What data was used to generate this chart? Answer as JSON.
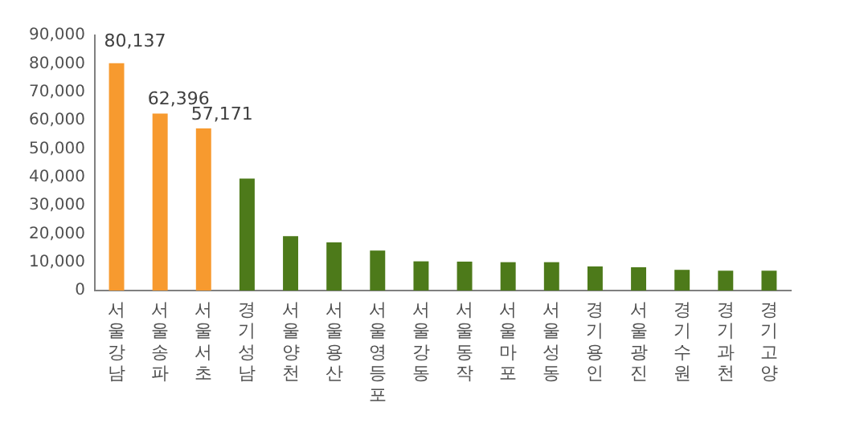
{
  "chart_data": {
    "type": "bar",
    "categories": [
      "서울강남",
      "서울송파",
      "서울서초",
      "경기성남",
      "서울양천",
      "서울용산",
      "서울영등포",
      "서울강동",
      "서울동작",
      "서울마포",
      "서울성동",
      "경기용인",
      "서울광진",
      "경기수원",
      "경기과천",
      "경기고양"
    ],
    "values": [
      80137,
      62396,
      57171,
      39500,
      19200,
      17000,
      14100,
      10300,
      10200,
      10000,
      10000,
      8500,
      8200,
      7300,
      7000,
      7000
    ],
    "colors": [
      "#f79a2f",
      "#f79a2f",
      "#f79a2f",
      "#4d7a1a",
      "#4d7a1a",
      "#4d7a1a",
      "#4d7a1a",
      "#4d7a1a",
      "#4d7a1a",
      "#4d7a1a",
      "#4d7a1a",
      "#4d7a1a",
      "#4d7a1a",
      "#4d7a1a",
      "#4d7a1a",
      "#4d7a1a"
    ],
    "value_labels": [
      "80,137",
      "62,396",
      "57,171",
      null,
      null,
      null,
      null,
      null,
      null,
      null,
      null,
      null,
      null,
      null,
      null,
      null
    ],
    "ylim": [
      0,
      90000
    ],
    "yticks": [
      0,
      {
        "value": 10000,
        "label": "10,000"
      },
      {
        "value": 20000,
        "label": "20,000"
      },
      {
        "value": 30000,
        "label": "30,000"
      },
      {
        "value": 40000,
        "label": "40,000"
      },
      {
        "value": 50000,
        "label": "50,000"
      },
      {
        "value": 60000,
        "label": "60,000"
      },
      {
        "value": 70000,
        "label": "70,000"
      },
      {
        "value": 80000,
        "label": "80,000"
      },
      {
        "value": 90000,
        "label": "90,000"
      }
    ],
    "grid": false,
    "legend": false
  }
}
